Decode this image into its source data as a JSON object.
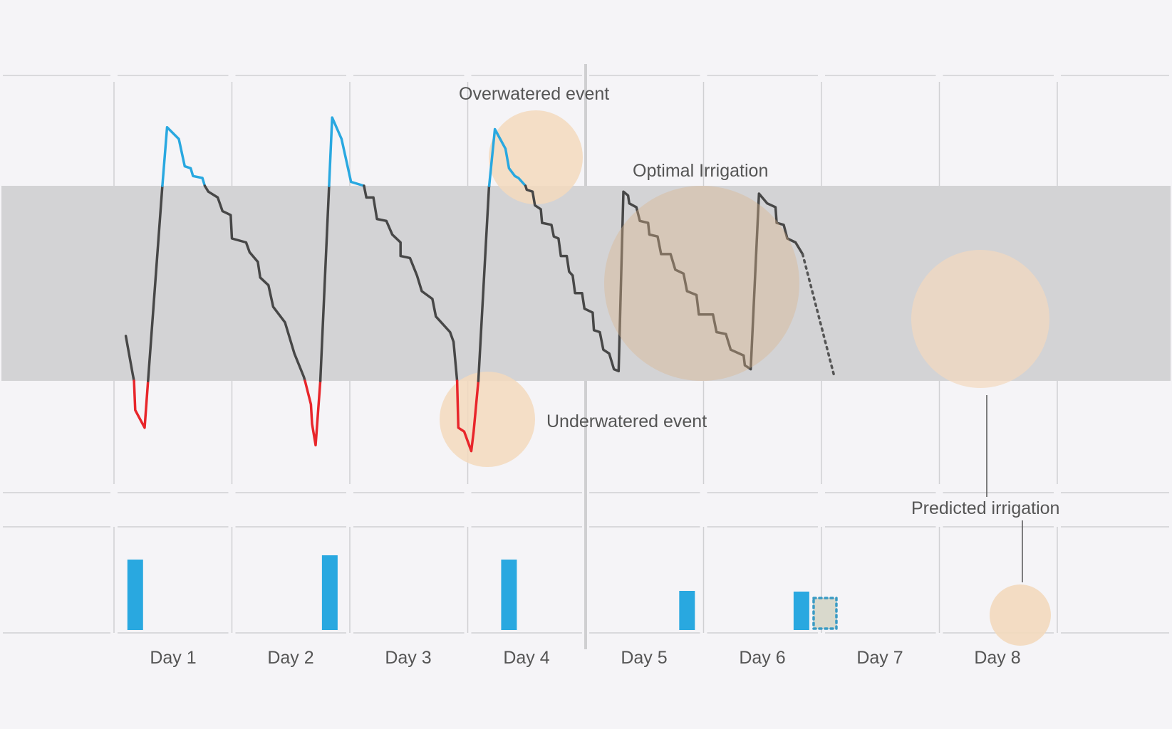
{
  "chart_data": {
    "type": "line",
    "categories": [
      "Day 1",
      "Day 2",
      "Day 3",
      "Day 4",
      "Day 5",
      "Day 6",
      "Day 7",
      "Day 8"
    ],
    "optimal_band": {
      "low": 0.0,
      "high": 1.0,
      "label": "Optimal Irrigation"
    },
    "moisture_series": [
      [
        0.1,
        0.23
      ],
      [
        0.16,
        0.03
      ],
      [
        0.17,
        0.0
      ],
      [
        0.18,
        -0.15
      ],
      [
        0.26,
        -0.24
      ],
      [
        0.41,
        1.0
      ],
      [
        0.45,
        1.3
      ],
      [
        0.55,
        1.24
      ],
      [
        0.6,
        1.1
      ],
      [
        0.65,
        1.09
      ],
      [
        0.67,
        1.05
      ],
      [
        0.75,
        1.04
      ],
      [
        0.77,
        1.0
      ],
      [
        0.8,
        0.97
      ],
      [
        0.88,
        0.94
      ],
      [
        0.92,
        0.87
      ],
      [
        0.99,
        0.85
      ],
      [
        1.0,
        0.73
      ],
      [
        1.12,
        0.71
      ],
      [
        1.15,
        0.66
      ],
      [
        1.22,
        0.61
      ],
      [
        1.24,
        0.53
      ],
      [
        1.31,
        0.49
      ],
      [
        1.35,
        0.38
      ],
      [
        1.45,
        0.3
      ],
      [
        1.53,
        0.14
      ],
      [
        1.61,
        0.02
      ],
      [
        1.62,
        0.0
      ],
      [
        1.67,
        -0.12
      ],
      [
        1.68,
        -0.22
      ],
      [
        1.71,
        -0.33
      ],
      [
        1.75,
        0.0
      ],
      [
        1.85,
        1.35
      ],
      [
        1.93,
        1.24
      ],
      [
        2.01,
        1.02
      ],
      [
        2.12,
        1.0
      ],
      [
        2.14,
        0.94
      ],
      [
        2.2,
        0.94
      ],
      [
        2.23,
        0.83
      ],
      [
        2.31,
        0.82
      ],
      [
        2.36,
        0.75
      ],
      [
        2.43,
        0.71
      ],
      [
        2.43,
        0.64
      ],
      [
        2.51,
        0.63
      ],
      [
        2.57,
        0.54
      ],
      [
        2.61,
        0.46
      ],
      [
        2.7,
        0.42
      ],
      [
        2.73,
        0.33
      ],
      [
        2.85,
        0.25
      ],
      [
        2.88,
        0.2
      ],
      [
        2.91,
        0.0
      ],
      [
        2.92,
        -0.24
      ],
      [
        2.97,
        -0.26
      ],
      [
        3.03,
        -0.36
      ],
      [
        3.05,
        -0.26
      ],
      [
        3.09,
        0.0
      ],
      [
        3.18,
        0.99
      ],
      [
        3.23,
        1.29
      ],
      [
        3.32,
        1.19
      ],
      [
        3.35,
        1.09
      ],
      [
        3.4,
        1.05
      ],
      [
        3.43,
        1.04
      ],
      [
        3.49,
        1.0
      ],
      [
        3.5,
        0.98
      ],
      [
        3.55,
        0.97
      ],
      [
        3.57,
        0.9
      ],
      [
        3.62,
        0.88
      ],
      [
        3.63,
        0.81
      ],
      [
        3.71,
        0.8
      ],
      [
        3.73,
        0.74
      ],
      [
        3.77,
        0.73
      ],
      [
        3.79,
        0.64
      ],
      [
        3.84,
        0.64
      ],
      [
        3.86,
        0.56
      ],
      [
        3.89,
        0.54
      ],
      [
        3.91,
        0.45
      ],
      [
        3.97,
        0.45
      ],
      [
        3.99,
        0.37
      ],
      [
        4.06,
        0.35
      ],
      [
        4.07,
        0.26
      ],
      [
        4.12,
        0.25
      ],
      [
        4.15,
        0.16
      ],
      [
        4.2,
        0.14
      ],
      [
        4.24,
        0.06
      ],
      [
        4.28,
        0.05
      ],
      [
        4.32,
        0.97
      ],
      [
        4.36,
        0.95
      ],
      [
        4.37,
        0.91
      ],
      [
        4.43,
        0.89
      ],
      [
        4.46,
        0.82
      ],
      [
        4.53,
        0.81
      ],
      [
        4.54,
        0.75
      ],
      [
        4.61,
        0.74
      ],
      [
        4.64,
        0.65
      ],
      [
        4.72,
        0.65
      ],
      [
        4.76,
        0.57
      ],
      [
        4.83,
        0.55
      ],
      [
        4.86,
        0.46
      ],
      [
        4.94,
        0.44
      ],
      [
        4.96,
        0.34
      ],
      [
        5.08,
        0.34
      ],
      [
        5.11,
        0.25
      ],
      [
        5.19,
        0.24
      ],
      [
        5.23,
        0.16
      ],
      [
        5.34,
        0.13
      ],
      [
        5.35,
        0.08
      ],
      [
        5.4,
        0.06
      ],
      [
        5.47,
        0.96
      ],
      [
        5.54,
        0.91
      ],
      [
        5.61,
        0.89
      ],
      [
        5.62,
        0.81
      ],
      [
        5.68,
        0.8
      ],
      [
        5.71,
        0.73
      ],
      [
        5.78,
        0.71
      ],
      [
        5.84,
        0.65
      ]
    ],
    "predicted_series": [
      [
        5.84,
        0.65
      ],
      [
        6.11,
        0.02
      ]
    ],
    "irrigation_bars": [
      {
        "x": 0.18,
        "value": 0.99
      },
      {
        "x": 1.83,
        "value": 1.05
      },
      {
        "x": 3.35,
        "value": 0.99
      },
      {
        "x": 4.86,
        "value": 0.55
      },
      {
        "x": 5.83,
        "value": 0.54
      }
    ],
    "predicted_bar": {
      "x": 6.03,
      "value": 0.45
    },
    "colors": {
      "high": "#29a8e0",
      "low": "#e8262b",
      "normal": "#474747",
      "band": "#d3d3d5",
      "highlight": "#f3d9bd",
      "predicted": "#555555"
    },
    "annotations": {
      "overwatered": "Overwatered event",
      "optimal": "Optimal Irrigation",
      "underwatered": "Underwatered event",
      "predicted": "Predicted irrigation"
    }
  }
}
